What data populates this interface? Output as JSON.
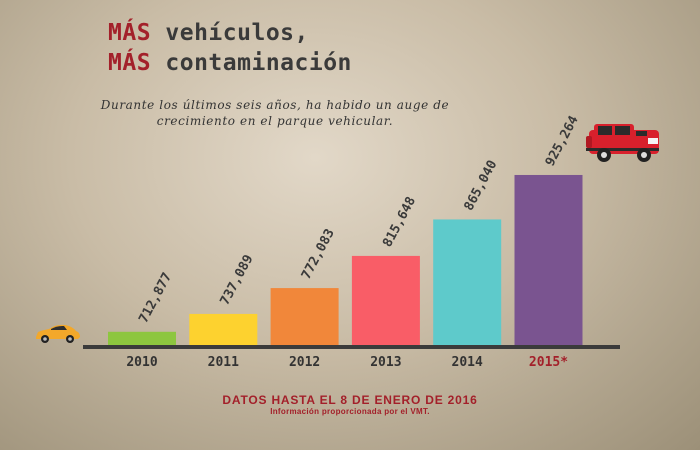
{
  "title": {
    "line1_accent": "MÁS",
    "line1_rest": " vehículos,",
    "line2_accent": "MÁS",
    "line2_rest": " contaminación"
  },
  "subtitle": "Durante los últimos seis años, ha habido un auge de crecimiento en el parque vehicular.",
  "footer": {
    "main": "DATOS HASTA EL 8 DE ENERO DE 2016",
    "sub": "Información proporcionada por el VMT."
  },
  "colors": {
    "accent": "#a3202a",
    "bars": [
      "#8dc63f",
      "#fdd22f",
      "#f1873a",
      "#f95d67",
      "#5ecacb",
      "#7a5490"
    ]
  },
  "icons": [
    "small-yellow-car-icon",
    "red-suv-icon"
  ],
  "chart_data": {
    "type": "bar",
    "categories": [
      "2010",
      "2011",
      "2012",
      "2013",
      "2014",
      "2015*"
    ],
    "values": [
      712877,
      737089,
      772083,
      815648,
      865040,
      925264
    ],
    "value_labels": [
      "712,877",
      "737,089",
      "772,083",
      "815,648",
      "865,040",
      "925,264"
    ],
    "highlight_category": "2015*",
    "ylim": [
      695000,
      932000
    ],
    "grid": false,
    "title": "",
    "xlabel": "",
    "ylabel": ""
  }
}
